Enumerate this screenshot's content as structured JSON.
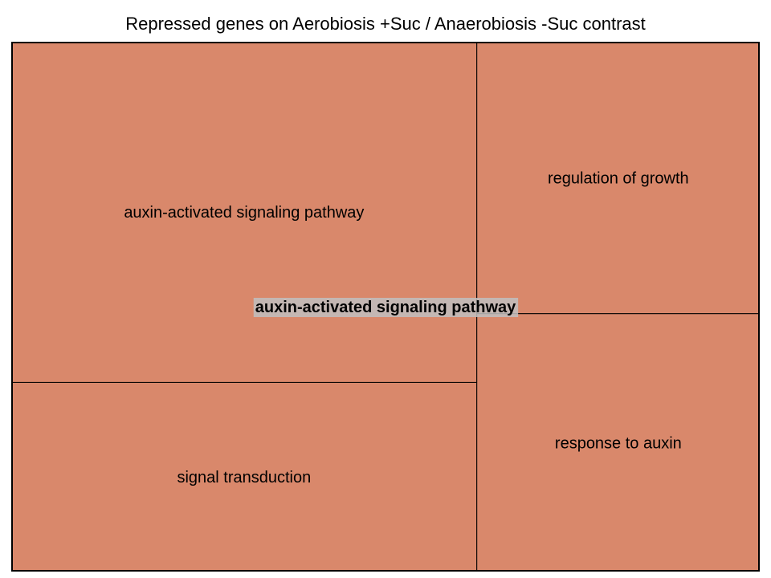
{
  "chart_data": {
    "type": "treemap",
    "title": "Repressed genes on Aerobiosis +Suc / Anaerobiosis -Suc contrast",
    "group": {
      "name": "auxin-activated signaling pathway",
      "color": "#d9886b"
    },
    "tiles": [
      {
        "label": "auxin-activated signaling pathway",
        "value": 0.4
      },
      {
        "label": "signal transduction",
        "value": 0.222
      },
      {
        "label": "regulation of growth",
        "value": 0.194
      },
      {
        "label": "response to auxin",
        "value": 0.184
      }
    ],
    "colors": {
      "tile_fill": "#d9886b",
      "border": "#000000",
      "label_bg": "#bfbfbf"
    }
  }
}
